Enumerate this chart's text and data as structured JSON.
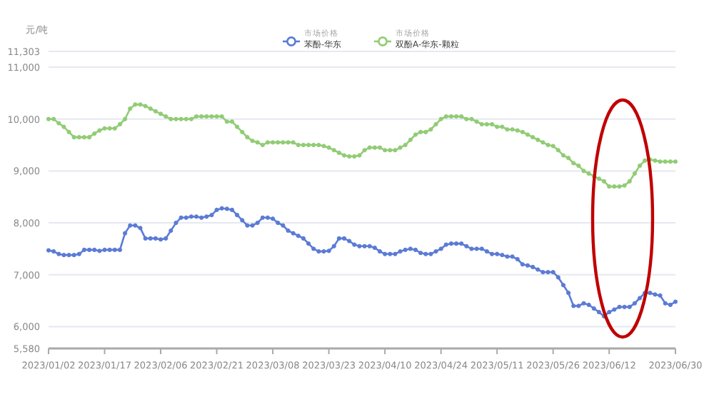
{
  "chart_data": {
    "type": "line",
    "ylabel": "元/吨",
    "categories": [
      "2023/01/02",
      null,
      null,
      null,
      null,
      null,
      null,
      null,
      null,
      null,
      null,
      "2023/01/17",
      null,
      null,
      null,
      null,
      null,
      null,
      null,
      null,
      null,
      null,
      "2023/02/06",
      null,
      null,
      null,
      null,
      null,
      null,
      null,
      null,
      null,
      null,
      "2023/02/21",
      null,
      null,
      null,
      null,
      null,
      null,
      null,
      null,
      null,
      null,
      "2023/03/08",
      null,
      null,
      null,
      null,
      null,
      null,
      null,
      null,
      null,
      null,
      "2023/03/23",
      null,
      null,
      null,
      null,
      null,
      null,
      null,
      null,
      null,
      null,
      "2023/04/10",
      null,
      null,
      null,
      null,
      null,
      null,
      null,
      null,
      null,
      null,
      "2023/04/24",
      null,
      null,
      null,
      null,
      null,
      null,
      null,
      null,
      null,
      null,
      "2023/05/11",
      null,
      null,
      null,
      null,
      null,
      null,
      null,
      null,
      null,
      null,
      "2023/05/26",
      null,
      null,
      null,
      null,
      null,
      null,
      null,
      null,
      null,
      null,
      "2023/06/12",
      null,
      null,
      null,
      null,
      null,
      null,
      null,
      null,
      null,
      null,
      null,
      null,
      "2023/06/30"
    ],
    "series": [
      {
        "name": "市场价格苯酚-华东",
        "color": "#5b7bd5",
        "values": [
          7470,
          7450,
          7400,
          7380,
          7380,
          7380,
          7400,
          7480,
          7480,
          7480,
          7460,
          7480,
          7480,
          7480,
          7480,
          7800,
          7950,
          7950,
          7900,
          7700,
          7700,
          7700,
          7680,
          7700,
          7850,
          8000,
          8100,
          8100,
          8120,
          8120,
          8100,
          8120,
          8150,
          8250,
          8280,
          8270,
          8250,
          8150,
          8050,
          7950,
          7950,
          8000,
          8100,
          8100,
          8080,
          8000,
          7950,
          7850,
          7800,
          7750,
          7700,
          7600,
          7500,
          7450,
          7450,
          7460,
          7550,
          7700,
          7700,
          7650,
          7580,
          7550,
          7550,
          7550,
          7520,
          7450,
          7400,
          7400,
          7400,
          7450,
          7480,
          7500,
          7480,
          7420,
          7400,
          7400,
          7450,
          7500,
          7580,
          7600,
          7600,
          7600,
          7550,
          7500,
          7500,
          7500,
          7450,
          7400,
          7400,
          7380,
          7350,
          7350,
          7300,
          7200,
          7180,
          7150,
          7100,
          7050,
          7050,
          7050,
          6950,
          6800,
          6650,
          6400,
          6400,
          6450,
          6420,
          6350,
          6280,
          6200,
          6280,
          6330,
          6380,
          6380,
          6380,
          6450,
          6550,
          6650,
          6650,
          6620,
          6600,
          6450,
          6420,
          6480
        ]
      },
      {
        "name": "市场价格双酚A-华东-颗粒",
        "color": "#91cc75",
        "values": [
          10000,
          10000,
          9920,
          9850,
          9750,
          9650,
          9650,
          9650,
          9650,
          9720,
          9780,
          9820,
          9820,
          9820,
          9900,
          10000,
          10200,
          10280,
          10280,
          10250,
          10200,
          10150,
          10100,
          10050,
          10000,
          10000,
          10000,
          10000,
          10000,
          10050,
          10050,
          10050,
          10050,
          10050,
          10050,
          9950,
          9950,
          9850,
          9750,
          9650,
          9580,
          9550,
          9500,
          9550,
          9550,
          9550,
          9550,
          9550,
          9550,
          9500,
          9500,
          9500,
          9500,
          9500,
          9480,
          9450,
          9400,
          9350,
          9300,
          9280,
          9280,
          9300,
          9400,
          9450,
          9450,
          9450,
          9400,
          9400,
          9400,
          9450,
          9500,
          9600,
          9700,
          9750,
          9750,
          9800,
          9900,
          10000,
          10050,
          10050,
          10050,
          10050,
          10000,
          10000,
          9950,
          9900,
          9900,
          9900,
          9850,
          9850,
          9800,
          9800,
          9780,
          9750,
          9700,
          9650,
          9600,
          9550,
          9500,
          9480,
          9400,
          9300,
          9250,
          9150,
          9100,
          9000,
          8950,
          8900,
          8850,
          8800,
          8700,
          8700,
          8700,
          8720,
          8800,
          8950,
          9100,
          9200,
          9220,
          9200,
          9180,
          9180,
          9180,
          9180
        ]
      }
    ],
    "ylim": [
      5580,
      11303
    ],
    "yticks": [
      {
        "value": 5580,
        "label": "5,580"
      },
      {
        "value": 6000,
        "label": "6,000"
      },
      {
        "value": 7000,
        "label": "7,000"
      },
      {
        "value": 8000,
        "label": "8,000"
      },
      {
        "value": 9000,
        "label": "9,000"
      },
      {
        "value": 10000,
        "label": "10,000"
      },
      {
        "value": 11000,
        "label": "11,000"
      },
      {
        "value": 11303,
        "label": "11,303"
      }
    ],
    "grid": "y",
    "legend": "top",
    "marker": "circle",
    "line_style": "solid"
  }
}
